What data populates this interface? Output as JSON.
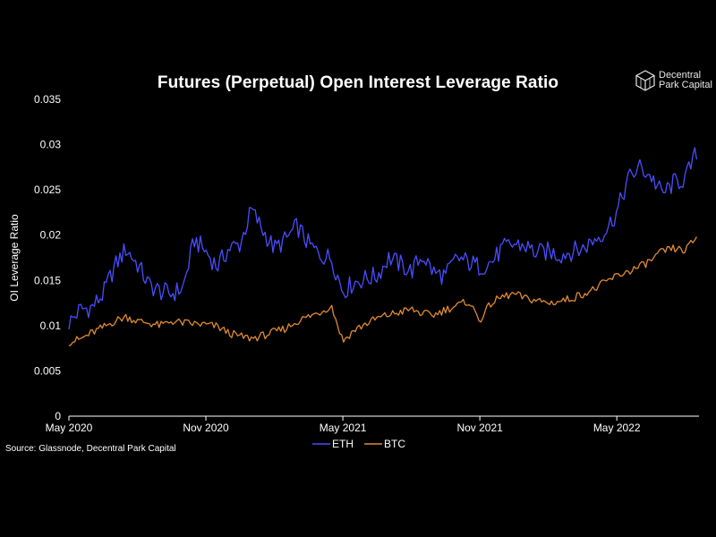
{
  "chart_data": {
    "type": "line",
    "title": "Futures (Perpetual) Open Interest Leverage Ratio",
    "xlabel": "",
    "ylabel": "OI Leverage Ratio",
    "ylim": [
      0,
      0.035
    ],
    "y_ticks": [
      "0",
      "0.005",
      "0.01",
      "0.015",
      "0.02",
      "0.025",
      "0.03",
      "0.035"
    ],
    "x_ticks": [
      "May 2020",
      "Nov 2020",
      "May 2021",
      "Nov 2021",
      "May 2022"
    ],
    "x_tick_months": [
      0,
      6,
      12,
      18,
      24
    ],
    "x_range_months": [
      0,
      27.6
    ],
    "x": [
      0,
      0.5,
      1,
      1.5,
      2,
      2.5,
      3,
      3.5,
      4,
      4.5,
      5,
      5.5,
      6,
      6.5,
      7,
      7.5,
      8,
      8.5,
      9,
      9.5,
      10,
      10.5,
      11,
      11.5,
      12,
      12.5,
      13,
      13.5,
      14,
      14.5,
      15,
      15.5,
      16,
      16.5,
      17,
      17.5,
      18,
      18.5,
      19,
      19.5,
      20,
      20.5,
      21,
      21.5,
      22,
      22.5,
      23,
      23.5,
      24,
      24.5,
      25,
      25.5,
      26,
      26.5,
      27,
      27.5
    ],
    "series": [
      {
        "name": "ETH",
        "color": "#4a4dff",
        "values": [
          0.0103,
          0.0118,
          0.012,
          0.0135,
          0.0165,
          0.0185,
          0.0168,
          0.0145,
          0.0138,
          0.0135,
          0.0142,
          0.0195,
          0.0182,
          0.0165,
          0.0185,
          0.019,
          0.0228,
          0.0205,
          0.0185,
          0.0195,
          0.021,
          0.019,
          0.0178,
          0.0175,
          0.0138,
          0.0148,
          0.0152,
          0.0155,
          0.0175,
          0.0168,
          0.016,
          0.0178,
          0.0158,
          0.0155,
          0.0175,
          0.017,
          0.0165,
          0.017,
          0.0185,
          0.019,
          0.0188,
          0.018,
          0.0182,
          0.0178,
          0.0182,
          0.0185,
          0.0195,
          0.0205,
          0.0225,
          0.0262,
          0.0275,
          0.0265,
          0.0245,
          0.0258,
          0.0262,
          0.0292
        ]
      },
      {
        "name": "BTC",
        "color": "#e08a33",
        "values": [
          0.0082,
          0.0085,
          0.0092,
          0.0098,
          0.0105,
          0.011,
          0.0105,
          0.0103,
          0.01,
          0.0105,
          0.0103,
          0.0102,
          0.0101,
          0.0099,
          0.0092,
          0.0088,
          0.0086,
          0.0089,
          0.0093,
          0.0097,
          0.0105,
          0.011,
          0.0115,
          0.0122,
          0.0083,
          0.0095,
          0.0102,
          0.0108,
          0.0112,
          0.0115,
          0.0118,
          0.0113,
          0.0112,
          0.0118,
          0.0122,
          0.0127,
          0.0106,
          0.0125,
          0.0132,
          0.0135,
          0.013,
          0.0128,
          0.0125,
          0.0127,
          0.013,
          0.0135,
          0.014,
          0.0148,
          0.0155,
          0.016,
          0.0165,
          0.0172,
          0.0182,
          0.0185,
          0.0183,
          0.0198
        ]
      }
    ],
    "legend_position": "bottom-center",
    "source": "Source: Glassnode, Decentral Park Capital"
  },
  "brand": {
    "line1": "Decentral",
    "line2": "Park Capital"
  }
}
